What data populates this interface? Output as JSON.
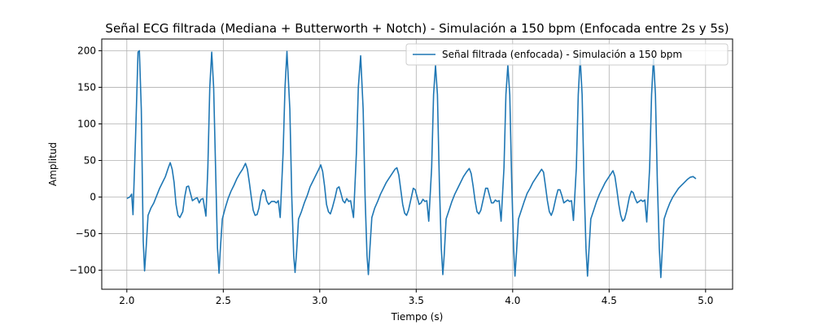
{
  "chart_data": {
    "type": "line",
    "title": "Señal ECG filtrada (Mediana + Butterworth + Notch) - Simulación a 150 bpm (Enfocada entre 2s y 5s)",
    "xlabel": "Tiempo (s)",
    "ylabel": "Amplitud",
    "xlim": [
      1.87,
      5.14
    ],
    "ylim": [
      -126,
      216
    ],
    "xticks": [
      2.0,
      2.5,
      3.0,
      3.5,
      4.0,
      4.5,
      5.0
    ],
    "xtick_labels": [
      "2.0",
      "2.5",
      "3.0",
      "3.5",
      "4.0",
      "4.5",
      "5.0"
    ],
    "yticks": [
      -100,
      -50,
      0,
      50,
      100,
      150,
      200
    ],
    "ytick_labels": [
      "−100",
      "−50",
      "0",
      "50",
      "100",
      "150",
      "200"
    ],
    "grid": true,
    "legend_position": "upper-right",
    "series": [
      {
        "name": "Señal filtrada (enfocada) - Simulación a 150 bpm",
        "color": "#1f77b4",
        "points": [
          [
            2.0,
            -2
          ],
          [
            2.015,
            0
          ],
          [
            2.025,
            4
          ],
          [
            2.032,
            -24
          ],
          [
            2.045,
            80
          ],
          [
            2.058,
            198
          ],
          [
            2.065,
            200
          ],
          [
            2.075,
            120
          ],
          [
            2.085,
            -60
          ],
          [
            2.092,
            -101
          ],
          [
            2.1,
            -70
          ],
          [
            2.11,
            -25
          ],
          [
            2.125,
            -15
          ],
          [
            2.14,
            -8
          ],
          [
            2.155,
            2
          ],
          [
            2.17,
            12
          ],
          [
            2.185,
            20
          ],
          [
            2.2,
            28
          ],
          [
            2.215,
            40
          ],
          [
            2.225,
            47
          ],
          [
            2.235,
            38
          ],
          [
            2.245,
            20
          ],
          [
            2.255,
            -10
          ],
          [
            2.265,
            -25
          ],
          [
            2.275,
            -28
          ],
          [
            2.29,
            -20
          ],
          [
            2.3,
            0
          ],
          [
            2.31,
            14
          ],
          [
            2.32,
            15
          ],
          [
            2.33,
            5
          ],
          [
            2.34,
            -5
          ],
          [
            2.355,
            -2
          ],
          [
            2.365,
            -1
          ],
          [
            2.375,
            -8
          ],
          [
            2.385,
            -3
          ],
          [
            2.395,
            -2
          ],
          [
            2.41,
            -26
          ],
          [
            2.42,
            40
          ],
          [
            2.43,
            150
          ],
          [
            2.44,
            198
          ],
          [
            2.45,
            150
          ],
          [
            2.46,
            40
          ],
          [
            2.47,
            -70
          ],
          [
            2.478,
            -104
          ],
          [
            2.485,
            -70
          ],
          [
            2.495,
            -30
          ],
          [
            2.51,
            -15
          ],
          [
            2.525,
            -2
          ],
          [
            2.54,
            8
          ],
          [
            2.555,
            16
          ],
          [
            2.57,
            25
          ],
          [
            2.585,
            32
          ],
          [
            2.6,
            38
          ],
          [
            2.615,
            46
          ],
          [
            2.625,
            38
          ],
          [
            2.635,
            20
          ],
          [
            2.645,
            0
          ],
          [
            2.655,
            -18
          ],
          [
            2.665,
            -25
          ],
          [
            2.675,
            -24
          ],
          [
            2.685,
            -15
          ],
          [
            2.695,
            2
          ],
          [
            2.705,
            10
          ],
          [
            2.715,
            8
          ],
          [
            2.725,
            -5
          ],
          [
            2.735,
            -10
          ],
          [
            2.75,
            -6
          ],
          [
            2.765,
            -6
          ],
          [
            2.775,
            -8
          ],
          [
            2.785,
            -5
          ],
          [
            2.795,
            -28
          ],
          [
            2.81,
            60
          ],
          [
            2.82,
            150
          ],
          [
            2.83,
            199
          ],
          [
            2.845,
            120
          ],
          [
            2.855,
            0
          ],
          [
            2.865,
            -80
          ],
          [
            2.872,
            -103
          ],
          [
            2.88,
            -75
          ],
          [
            2.89,
            -30
          ],
          [
            2.905,
            -20
          ],
          [
            2.92,
            -8
          ],
          [
            2.935,
            2
          ],
          [
            2.95,
            14
          ],
          [
            2.965,
            22
          ],
          [
            2.98,
            30
          ],
          [
            2.995,
            38
          ],
          [
            3.005,
            44
          ],
          [
            3.015,
            35
          ],
          [
            3.025,
            15
          ],
          [
            3.035,
            -10
          ],
          [
            3.045,
            -20
          ],
          [
            3.055,
            -23
          ],
          [
            3.065,
            -15
          ],
          [
            3.08,
            0
          ],
          [
            3.09,
            12
          ],
          [
            3.1,
            14
          ],
          [
            3.11,
            5
          ],
          [
            3.12,
            -5
          ],
          [
            3.13,
            -8
          ],
          [
            3.14,
            -2
          ],
          [
            3.15,
            -6
          ],
          [
            3.16,
            -5
          ],
          [
            3.175,
            -28
          ],
          [
            3.19,
            60
          ],
          [
            3.2,
            150
          ],
          [
            3.212,
            193
          ],
          [
            3.225,
            120
          ],
          [
            3.235,
            0
          ],
          [
            3.245,
            -80
          ],
          [
            3.252,
            -106
          ],
          [
            3.26,
            -70
          ],
          [
            3.27,
            -28
          ],
          [
            3.285,
            -15
          ],
          [
            3.3,
            -6
          ],
          [
            3.315,
            4
          ],
          [
            3.33,
            12
          ],
          [
            3.345,
            20
          ],
          [
            3.36,
            26
          ],
          [
            3.375,
            32
          ],
          [
            3.39,
            38
          ],
          [
            3.4,
            40
          ],
          [
            3.41,
            30
          ],
          [
            3.42,
            10
          ],
          [
            3.43,
            -10
          ],
          [
            3.44,
            -22
          ],
          [
            3.45,
            -25
          ],
          [
            3.46,
            -18
          ],
          [
            3.475,
            0
          ],
          [
            3.485,
            12
          ],
          [
            3.495,
            10
          ],
          [
            3.505,
            0
          ],
          [
            3.515,
            -10
          ],
          [
            3.525,
            -8
          ],
          [
            3.535,
            -3
          ],
          [
            3.545,
            -6
          ],
          [
            3.555,
            -5
          ],
          [
            3.565,
            -33
          ],
          [
            3.58,
            40
          ],
          [
            3.59,
            140
          ],
          [
            3.6,
            180
          ],
          [
            3.61,
            140
          ],
          [
            3.62,
            20
          ],
          [
            3.63,
            -70
          ],
          [
            3.638,
            -106
          ],
          [
            3.645,
            -80
          ],
          [
            3.655,
            -30
          ],
          [
            3.67,
            -18
          ],
          [
            3.685,
            -6
          ],
          [
            3.7,
            4
          ],
          [
            3.715,
            12
          ],
          [
            3.73,
            20
          ],
          [
            3.745,
            28
          ],
          [
            3.76,
            34
          ],
          [
            3.775,
            39
          ],
          [
            3.785,
            32
          ],
          [
            3.795,
            15
          ],
          [
            3.805,
            -5
          ],
          [
            3.815,
            -20
          ],
          [
            3.825,
            -23
          ],
          [
            3.835,
            -18
          ],
          [
            3.85,
            0
          ],
          [
            3.86,
            12
          ],
          [
            3.87,
            12
          ],
          [
            3.88,
            2
          ],
          [
            3.89,
            -8
          ],
          [
            3.9,
            -8
          ],
          [
            3.91,
            -4
          ],
          [
            3.92,
            -6
          ],
          [
            3.93,
            -5
          ],
          [
            3.94,
            -33
          ],
          [
            3.955,
            40
          ],
          [
            3.965,
            140
          ],
          [
            3.975,
            180
          ],
          [
            3.985,
            140
          ],
          [
            3.995,
            20
          ],
          [
            4.005,
            -70
          ],
          [
            4.012,
            -108
          ],
          [
            4.02,
            -75
          ],
          [
            4.03,
            -30
          ],
          [
            4.045,
            -18
          ],
          [
            4.06,
            -6
          ],
          [
            4.075,
            5
          ],
          [
            4.09,
            12
          ],
          [
            4.105,
            20
          ],
          [
            4.12,
            26
          ],
          [
            4.135,
            32
          ],
          [
            4.15,
            38
          ],
          [
            4.16,
            34
          ],
          [
            4.17,
            15
          ],
          [
            4.18,
            -5
          ],
          [
            4.19,
            -20
          ],
          [
            4.2,
            -25
          ],
          [
            4.21,
            -18
          ],
          [
            4.225,
            0
          ],
          [
            4.235,
            10
          ],
          [
            4.245,
            10
          ],
          [
            4.255,
            2
          ],
          [
            4.265,
            -8
          ],
          [
            4.275,
            -6
          ],
          [
            4.285,
            -4
          ],
          [
            4.295,
            -6
          ],
          [
            4.305,
            -5
          ],
          [
            4.315,
            -32
          ],
          [
            4.33,
            40
          ],
          [
            4.34,
            140
          ],
          [
            4.35,
            190
          ],
          [
            4.36,
            140
          ],
          [
            4.37,
            20
          ],
          [
            4.38,
            -70
          ],
          [
            4.388,
            -108
          ],
          [
            4.395,
            -75
          ],
          [
            4.405,
            -30
          ],
          [
            4.42,
            -18
          ],
          [
            4.435,
            -6
          ],
          [
            4.45,
            4
          ],
          [
            4.465,
            12
          ],
          [
            4.48,
            20
          ],
          [
            4.495,
            26
          ],
          [
            4.51,
            32
          ],
          [
            4.52,
            36
          ],
          [
            4.53,
            28
          ],
          [
            4.54,
            10
          ],
          [
            4.55,
            -10
          ],
          [
            4.56,
            -25
          ],
          [
            4.57,
            -33
          ],
          [
            4.58,
            -30
          ],
          [
            4.59,
            -20
          ],
          [
            4.605,
            0
          ],
          [
            4.615,
            8
          ],
          [
            4.625,
            6
          ],
          [
            4.635,
            -2
          ],
          [
            4.645,
            -8
          ],
          [
            4.655,
            -6
          ],
          [
            4.665,
            -4
          ],
          [
            4.675,
            -6
          ],
          [
            4.685,
            -4
          ],
          [
            4.695,
            -34
          ],
          [
            4.71,
            40
          ],
          [
            4.72,
            140
          ],
          [
            4.73,
            190
          ],
          [
            4.74,
            140
          ],
          [
            4.75,
            20
          ],
          [
            4.76,
            -70
          ],
          [
            4.768,
            -110
          ],
          [
            4.775,
            -75
          ],
          [
            4.785,
            -30
          ],
          [
            4.8,
            -18
          ],
          [
            4.815,
            -8
          ],
          [
            4.83,
            0
          ],
          [
            4.845,
            6
          ],
          [
            4.86,
            12
          ],
          [
            4.875,
            16
          ],
          [
            4.89,
            20
          ],
          [
            4.905,
            24
          ],
          [
            4.92,
            27
          ],
          [
            4.935,
            28
          ],
          [
            4.95,
            25
          ]
        ]
      }
    ]
  }
}
